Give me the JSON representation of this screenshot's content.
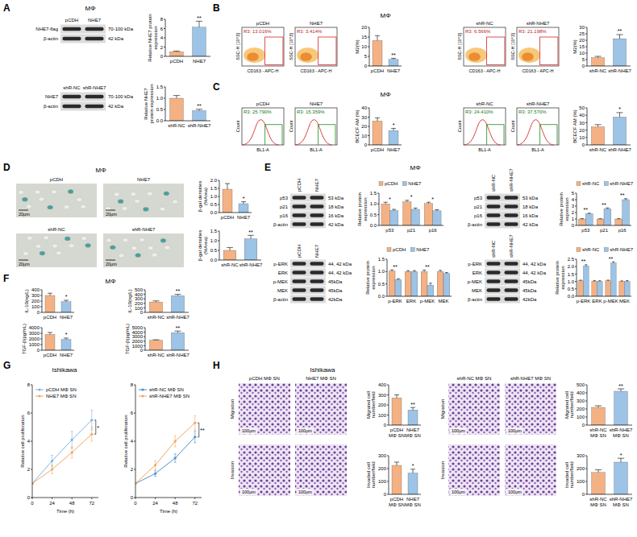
{
  "chart_data": [
    {
      "type": "bar",
      "categories": [
        "pCDH",
        "NHE7"
      ],
      "values": [
        1.0,
        6.3
      ],
      "errors": [
        0.15,
        1.3
      ],
      "colors": [
        "#f4b183",
        "#9dc3e6"
      ],
      "y_label": "Relative NHE7 protein expression",
      "ylim": [
        0,
        8
      ],
      "yticks": [
        0,
        2,
        4,
        6,
        8
      ],
      "significance": [
        null,
        "**"
      ]
    },
    {
      "type": "bar",
      "categories": [
        "shR-NC",
        "shR-NHE7"
      ],
      "values": [
        1.0,
        0.45
      ],
      "errors": [
        0.12,
        0.06
      ],
      "colors": [
        "#f4b183",
        "#9dc3e6"
      ],
      "y_label": "Relative NHE7 protein expression",
      "ylim": [
        0,
        1.5
      ],
      "yticks": [
        {
          "value": 0,
          "label": "0.0"
        },
        0.5,
        {
          "value": 1,
          "label": "1.0"
        },
        1.5
      ],
      "significance": [
        null,
        "**"
      ]
    },
    {
      "type": "bar",
      "categories": [
        "pCDH",
        "NHE7"
      ],
      "values": [
        13.2,
        3.4
      ],
      "errors": [
        2.5,
        0.6
      ],
      "colors": [
        "#f4b183",
        "#9dc3e6"
      ],
      "y_label": "M2(%)",
      "ylim": [
        0,
        20
      ],
      "yticks": [
        0,
        5,
        10,
        15,
        20
      ],
      "significance": [
        null,
        "**"
      ]
    },
    {
      "type": "bar",
      "categories": [
        "shR-NC",
        "shR-NHE7"
      ],
      "values": [
        6.5,
        21.2
      ],
      "errors": [
        1.0,
        3.2
      ],
      "colors": [
        "#f4b183",
        "#9dc3e6"
      ],
      "y_label": "M2(%)",
      "ylim": [
        0,
        30
      ],
      "yticks": [
        0,
        5,
        10,
        15,
        20,
        25,
        30
      ],
      "significance": [
        null,
        "**"
      ]
    },
    {
      "type": "bar",
      "categories": [
        "pCDH",
        "NHE7"
      ],
      "values": [
        25.8,
        15.4
      ],
      "errors": [
        3.5,
        2.5
      ],
      "colors": [
        "#f4b183",
        "#9dc3e6"
      ],
      "y_label": "BCECF AM (%)",
      "ylim": [
        0,
        40
      ],
      "yticks": [
        0,
        10,
        20,
        30,
        40
      ],
      "significance": [
        null,
        "*"
      ]
    },
    {
      "type": "bar",
      "categories": [
        "shR-NC",
        "shR-NHE7"
      ],
      "values": [
        24.4,
        37.6
      ],
      "errors": [
        3.0,
        6.0
      ],
      "colors": [
        "#f4b183",
        "#9dc3e6"
      ],
      "y_label": "BCECF AM (%)",
      "ylim": [
        0,
        50
      ],
      "yticks": [
        0,
        10,
        20,
        30,
        40,
        50
      ],
      "significance": [
        null,
        "*"
      ]
    },
    {
      "type": "bar",
      "categories": [
        "pCDH",
        "NHE7"
      ],
      "values": [
        1.45,
        0.55
      ],
      "errors": [
        0.35,
        0.12
      ],
      "colors": [
        "#f4b183",
        "#9dc3e6"
      ],
      "y_label": "β-gal densities (%Area)",
      "ylim": [
        0,
        2
      ],
      "yticks": [
        {
          "value": 0,
          "label": "0.0"
        },
        0.5,
        {
          "value": 1,
          "label": "1.0"
        },
        1.5,
        {
          "value": 2,
          "label": "2.0"
        }
      ],
      "significance": [
        null,
        "*"
      ]
    },
    {
      "type": "bar",
      "categories": [
        "shR-NC",
        "shR-NHE7"
      ],
      "values": [
        0.5,
        1.1
      ],
      "errors": [
        0.15,
        0.18
      ],
      "colors": [
        "#f4b183",
        "#9dc3e6"
      ],
      "y_label": "β-gal densities (%Area)",
      "ylim": [
        0,
        1.5
      ],
      "yticks": [
        {
          "value": 0,
          "label": "0.0"
        },
        0.5,
        {
          "value": 1,
          "label": "1.0"
        },
        1.5
      ],
      "significance": [
        null,
        "**"
      ]
    },
    {
      "type": "bar",
      "categories": [
        "p53",
        "p21",
        "p16"
      ],
      "series": [
        {
          "name": "pCDH",
          "color": "#f4b183",
          "values": [
            1.0,
            1.1,
            1.02
          ],
          "errors": [
            0.08,
            0.07,
            0.06
          ]
        },
        {
          "name": "NHE7",
          "color": "#9dc3e6",
          "values": [
            0.7,
            0.75,
            0.68
          ],
          "errors": [
            0.05,
            0.06,
            0.05
          ]
        }
      ],
      "y_label": "Relative protein expression",
      "ylim": [
        0,
        1.5
      ],
      "yticks": [
        {
          "value": 0,
          "label": "0.0"
        },
        0.5,
        {
          "value": 1,
          "label": "1.0"
        },
        1.5
      ],
      "legend": "top",
      "significance": [
        "*",
        "*",
        "*"
      ]
    },
    {
      "type": "bar",
      "categories": [
        "p53",
        "p21",
        "p16"
      ],
      "series": [
        {
          "name": "shR-NC",
          "color": "#f4b183",
          "values": [
            1.0,
            1.0,
            1.0
          ],
          "errors": [
            0.05,
            0.04,
            0.05
          ]
        },
        {
          "name": "shR-NHE7",
          "color": "#9dc3e6",
          "values": [
            1.8,
            2.6,
            4.0
          ],
          "errors": [
            0.1,
            0.12,
            0.15
          ]
        }
      ],
      "y_label": "Relative protein expression",
      "ylim": [
        0,
        5
      ],
      "yticks": [
        0,
        1,
        2,
        3,
        4,
        5
      ],
      "legend": "top",
      "significance": [
        "**",
        "**",
        "**"
      ]
    },
    {
      "type": "bar",
      "categories": [
        "p-ERK",
        "ERK",
        "p-MEK",
        "MEK"
      ],
      "series": [
        {
          "name": "pCDH",
          "color": "#f4b183",
          "values": [
            1.02,
            1.0,
            1.0,
            1.0
          ],
          "errors": [
            0.05,
            0.04,
            0.06,
            0.05
          ]
        },
        {
          "name": "NHE7",
          "color": "#9dc3e6",
          "values": [
            0.68,
            1.0,
            0.45,
            0.92
          ],
          "errors": [
            0.03,
            0.04,
            0.08,
            0.04
          ]
        }
      ],
      "y_label": "Relative protein expression",
      "ylim": [
        0,
        1.5
      ],
      "yticks": [
        {
          "value": 0,
          "label": "0.0"
        },
        0.5,
        {
          "value": 1,
          "label": "1.0"
        },
        1.5
      ],
      "legend": "top",
      "significance": [
        "**",
        null,
        "**",
        null
      ]
    },
    {
      "type": "bar",
      "categories": [
        "p-ERK",
        "ERK",
        "p-MEK",
        "MEK"
      ],
      "series": [
        {
          "name": "shR-NC",
          "color": "#f4b183",
          "values": [
            1.05,
            1.02,
            1.05,
            1.0
          ],
          "errors": [
            0.04,
            0.04,
            0.04,
            0.04
          ]
        },
        {
          "name": "shR-NHE7",
          "color": "#9dc3e6",
          "values": [
            2.05,
            1.0,
            2.25,
            1.0
          ],
          "errors": [
            0.08,
            0.05,
            0.08,
            0.06
          ]
        }
      ],
      "y_label": "Relative protein expression",
      "ylim": [
        0,
        2.5
      ],
      "yticks": [
        {
          "value": 0,
          "label": "0.0"
        },
        0.5,
        {
          "value": 1,
          "label": "1.0"
        },
        1.5,
        {
          "value": 2,
          "label": "2.0"
        },
        2.5
      ],
      "legend": "top",
      "significance": [
        "**",
        null,
        "**",
        null
      ]
    },
    {
      "type": "bar",
      "categories": [
        "pCDH",
        "NHE7"
      ],
      "values": [
        300,
        190
      ],
      "errors": [
        40,
        25
      ],
      "colors": [
        "#f4b183",
        "#9dc3e6"
      ],
      "y_label": "IL-10(ng/L)",
      "ylim": [
        0,
        400
      ],
      "yticks": [
        0,
        100,
        200,
        300,
        400
      ],
      "significance": [
        null,
        "*"
      ]
    },
    {
      "type": "bar",
      "categories": [
        "shR-NC",
        "shR-NHE7"
      ],
      "values": [
        230,
        370
      ],
      "errors": [
        25,
        30
      ],
      "colors": [
        "#f4b183",
        "#9dc3e6"
      ],
      "y_label": "IL-10(ng/L)",
      "ylim": [
        0,
        500
      ],
      "yticks": [
        0,
        100,
        200,
        300,
        400,
        500
      ],
      "significance": [
        null,
        "**"
      ]
    },
    {
      "type": "bar",
      "categories": [
        "pCDH",
        "NHE7"
      ],
      "values": [
        2800,
        1900
      ],
      "errors": [
        350,
        250
      ],
      "colors": [
        "#f4b183",
        "#9dc3e6"
      ],
      "y_label": "TGF-β(pg/mL)",
      "ylim": [
        0,
        4000
      ],
      "yticks": [
        0,
        1000,
        2000,
        3000,
        4000
      ],
      "significance": [
        null,
        "*"
      ]
    },
    {
      "type": "bar",
      "categories": [
        "shR-NC",
        "shR-NHE7"
      ],
      "values": [
        2200,
        3900
      ],
      "errors": [
        120,
        350
      ],
      "colors": [
        "#f4b183",
        "#9dc3e6"
      ],
      "y_label": "TGF-β(pg/mL)",
      "ylim": [
        0,
        5000
      ],
      "yticks": [
        0,
        1000,
        2000,
        3000,
        4000,
        5000
      ],
      "significance": [
        null,
        "**"
      ]
    },
    {
      "type": "line",
      "x": [
        0,
        24,
        48,
        72
      ],
      "series": [
        {
          "name": "pCDH MΦ SN",
          "color": "#7fb3e0",
          "marker": "circle",
          "values": [
            1,
            2.6,
            4.1,
            5.5
          ],
          "errors": [
            0,
            0.4,
            0.6,
            0.7
          ]
        },
        {
          "name": "NHE7 MΦ SN",
          "color": "#f0a860",
          "marker": "circle",
          "values": [
            1,
            2.0,
            3.2,
            4.5
          ],
          "errors": [
            0,
            0.3,
            0.4,
            0.5
          ]
        }
      ],
      "x_label": "Time (h)",
      "y_label": "Relative cell proliferation",
      "xlim": [
        0,
        80
      ],
      "xticks": [
        0,
        24,
        48,
        72
      ],
      "ylim": [
        0,
        8
      ],
      "yticks": [
        0,
        2,
        4,
        6,
        8
      ],
      "legend": "top-left",
      "significance": "*"
    },
    {
      "type": "line",
      "x": [
        0,
        24,
        48,
        72
      ],
      "series": [
        {
          "name": "shR-NC MΦ SN",
          "color": "#4f8fcf",
          "marker": "circle",
          "values": [
            1,
            1.7,
            2.8,
            4.3
          ],
          "errors": [
            0,
            0.2,
            0.3,
            0.4
          ]
        },
        {
          "name": "shR-NHE7 MΦ SN",
          "color": "#f0a860",
          "marker": "circle",
          "values": [
            1,
            2.3,
            4.0,
            5.3
          ],
          "errors": [
            0,
            0.3,
            0.4,
            0.5
          ]
        }
      ],
      "x_label": "Time (h)",
      "y_label": "Relative cell proliferation",
      "xlim": [
        0,
        80
      ],
      "xticks": [
        0,
        24,
        48,
        72
      ],
      "ylim": [
        0,
        8
      ],
      "yticks": [
        0,
        2,
        4,
        6,
        8
      ],
      "legend": "top-left",
      "significance": "**"
    },
    {
      "type": "bar",
      "categories": [
        "pCDH MΦ SN",
        "NHE7 MΦ SN"
      ],
      "values": [
        270,
        150
      ],
      "errors": [
        30,
        25
      ],
      "colors": [
        "#f4b183",
        "#9dc3e6"
      ],
      "y_label": "Migrated cell number/field",
      "ylim": [
        0,
        400
      ],
      "yticks": [
        0,
        100,
        200,
        300,
        400
      ],
      "significance": [
        null,
        "**"
      ]
    },
    {
      "type": "bar",
      "categories": [
        "pCDH MΦ SN",
        "NHE7 MΦ SN"
      ],
      "values": [
        225,
        165
      ],
      "errors": [
        25,
        30
      ],
      "colors": [
        "#f4b183",
        "#9dc3e6"
      ],
      "y_label": "Invaded cell number/field",
      "ylim": [
        0,
        300
      ],
      "yticks": [
        0,
        100,
        200,
        300
      ],
      "significance": [
        null,
        "*"
      ]
    },
    {
      "type": "bar",
      "categories": [
        "shR-NC MΦ SN",
        "shR-NHE7 MΦ SN"
      ],
      "values": [
        220,
        420
      ],
      "errors": [
        20,
        30
      ],
      "colors": [
        "#f4b183",
        "#9dc3e6"
      ],
      "y_label": "Migrated cell number/field",
      "ylim": [
        0,
        500
      ],
      "yticks": [
        0,
        100,
        200,
        300,
        400,
        500
      ],
      "significance": [
        null,
        "**"
      ]
    },
    {
      "type": "bar",
      "categories": [
        "shR-NC MΦ SN",
        "shR-NHE7 MΦ SN"
      ],
      "values": [
        170,
        250
      ],
      "errors": [
        20,
        30
      ],
      "colors": [
        "#f4b183",
        "#9dc3e6"
      ],
      "y_label": "Invaded cell number/field",
      "ylim": [
        0,
        300
      ],
      "yticks": [
        0,
        100,
        200,
        300
      ],
      "significance": [
        null,
        "*"
      ]
    }
  ],
  "figure": {
    "panel_letters": [
      "A",
      "B",
      "C",
      "D",
      "E",
      "F",
      "G",
      "H"
    ],
    "titles": [
      "MΦ",
      "MΦ",
      "MΦ",
      "MΦ",
      "MΦ",
      "MΦ",
      "Ishikawa",
      "Ishikawa"
    ],
    "blots": [
      {
        "lanes": [
          "pCDH",
          "NHE7"
        ],
        "rows": [
          {
            "name": "NHE7-flag",
            "size": "70-100 kDa"
          },
          {
            "name": "β-actin",
            "size": "42 kDa"
          }
        ]
      },
      {
        "lanes": [
          "shR-NC",
          "shR-NHE7"
        ],
        "rows": [
          {
            "name": "NHE7",
            "size": "70-100 kDa"
          },
          {
            "name": "β-actin",
            "size": "42 kDa"
          }
        ]
      },
      {
        "lanes": [
          "pCDH",
          "NHE7"
        ],
        "rows": [
          {
            "name": "p53",
            "size": "53 kDa"
          },
          {
            "name": "p21",
            "size": "18 kDa"
          },
          {
            "name": "p16",
            "size": "16 kDa"
          },
          {
            "name": "β-actin",
            "size": "42 kDa"
          }
        ]
      },
      {
        "lanes": [
          "shR-NC",
          "shR-NHE7"
        ],
        "rows": [
          {
            "name": "p53",
            "size": "53 kDa"
          },
          {
            "name": "p21",
            "size": "18 kDa"
          },
          {
            "name": "p16",
            "size": "16 kDa"
          },
          {
            "name": "β-actin",
            "size": "42 kDa"
          }
        ]
      },
      {
        "lanes": [
          "pCDH",
          "NHE7"
        ],
        "rows": [
          {
            "name": "p-ERK",
            "size": "44, 42 kDa"
          },
          {
            "name": "ERK",
            "size": "44, 42 kDa"
          },
          {
            "name": "p-MEK",
            "size": "45kDa"
          },
          {
            "name": "MEK",
            "size": "45kDa"
          },
          {
            "name": "β-actin",
            "size": "42kDa"
          }
        ]
      },
      {
        "lanes": [
          "shR-NC",
          "shR-NHE7"
        ],
        "rows": [
          {
            "name": "p-ERK",
            "size": "44, 42 kDa"
          },
          {
            "name": "ERK",
            "size": "44, 42 kDa"
          },
          {
            "name": "p-MEK",
            "size": "45kDa"
          },
          {
            "name": "MEK",
            "size": "45kDa"
          },
          {
            "name": "β-actin",
            "size": "42kDa"
          }
        ]
      }
    ],
    "flow": {
      "x_label": "CD163 - APC-H",
      "y_label": "SSC-H [10^3]",
      "plots": [
        {
          "label": "pCDH",
          "gate": "R3: 13.016%"
        },
        {
          "label": "NHE7",
          "gate": "R3: 3.414%"
        },
        {
          "label": "shR-NC",
          "gate": "R3: 6.566%"
        },
        {
          "label": "shR-NHE7",
          "gate": "R3: 21.198%"
        }
      ]
    },
    "histograms": {
      "x_label": "BL1-A",
      "y_label": "Count",
      "plots": [
        {
          "label": "pCDH",
          "gate": "R3: 25.790%"
        },
        {
          "label": "NHE7",
          "gate": "R3: 15.359%"
        },
        {
          "label": "shR-NC",
          "gate": "R3: 24.410%"
        },
        {
          "label": "shR-NHE7",
          "gate": "R3: 37.570%"
        }
      ]
    },
    "stain_images": {
      "labels": [
        "pCDH",
        "NHE7",
        "shR-NC",
        "shR-NHE7"
      ],
      "scale": "20μm"
    },
    "transwell": {
      "columns": [
        "pCDH MΦ SN",
        "NHE7 MΦ SN",
        "shR-NC MΦ SN",
        "shR-NHE7 MΦ SN"
      ],
      "rows": [
        "Migration",
        "Invasion"
      ],
      "scale": "100μm"
    }
  }
}
